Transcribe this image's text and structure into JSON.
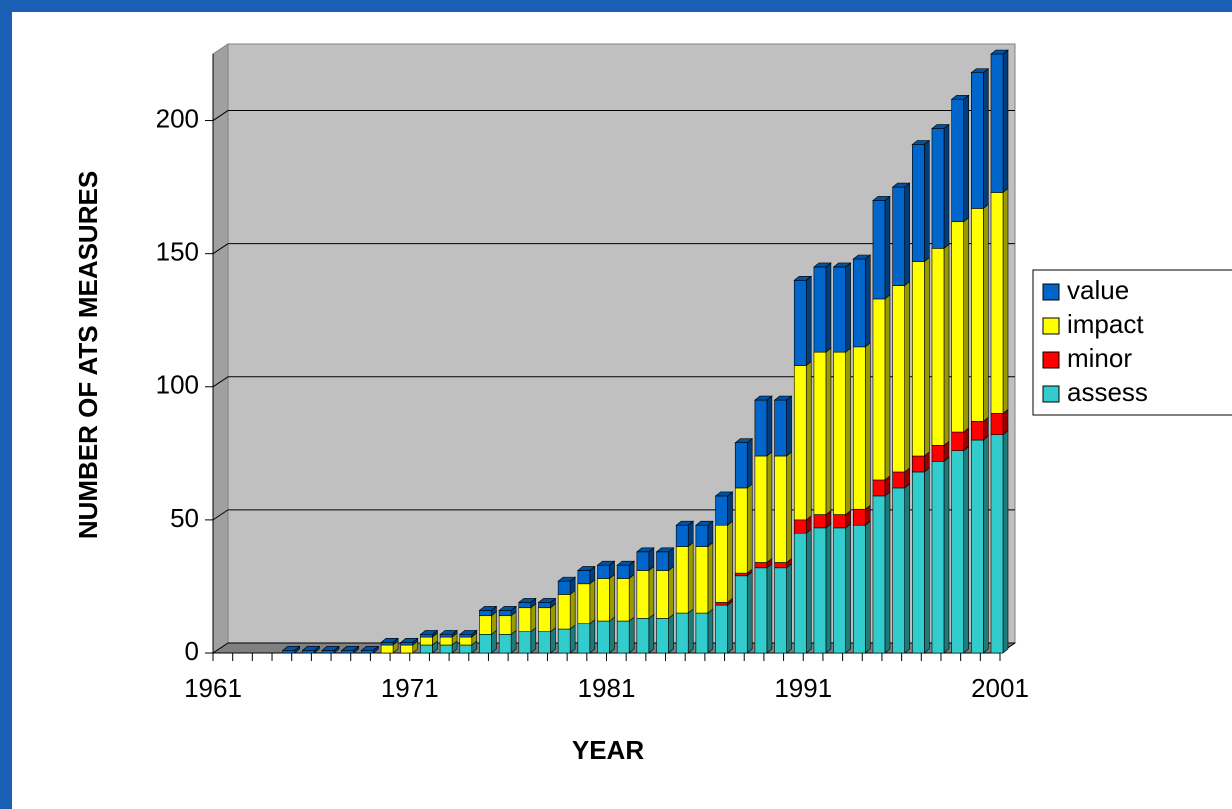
{
  "chart_data": {
    "type": "bar3d_stacked",
    "x_label": "YEAR",
    "y_label": "NUMBER OF ATS MEASURES",
    "categories": [
      "1961",
      null,
      null,
      null,
      null,
      null,
      null,
      null,
      null,
      null,
      "1971",
      null,
      null,
      null,
      null,
      null,
      null,
      null,
      null,
      null,
      "1981",
      null,
      null,
      null,
      null,
      null,
      null,
      null,
      null,
      null,
      "1991",
      null,
      null,
      null,
      null,
      null,
      null,
      null,
      null,
      null,
      "2001"
    ],
    "series": [
      {
        "name": "assess",
        "color": "#33cccc",
        "values": [
          0,
          0,
          0,
          0,
          0,
          0,
          0,
          0,
          0,
          0,
          0,
          3,
          3,
          3,
          7,
          7,
          8,
          8,
          9,
          11,
          12,
          12,
          13,
          13,
          15,
          15,
          18,
          29,
          32,
          32,
          45,
          47,
          47,
          48,
          59,
          62,
          68,
          72,
          76,
          80,
          82
        ]
      },
      {
        "name": "minor",
        "color": "#ff0000",
        "values": [
          0,
          0,
          0,
          0,
          0,
          0,
          0,
          0,
          0,
          0,
          0,
          0,
          0,
          0,
          0,
          0,
          0,
          0,
          0,
          0,
          0,
          0,
          0,
          0,
          0,
          0,
          1,
          1,
          2,
          2,
          5,
          5,
          5,
          6,
          6,
          6,
          6,
          6,
          7,
          7,
          8
        ]
      },
      {
        "name": "impact",
        "color": "#ffff00",
        "values": [
          0,
          0,
          0,
          0,
          0,
          0,
          0,
          0,
          0,
          3,
          3,
          3,
          3,
          3,
          7,
          7,
          9,
          9,
          13,
          15,
          16,
          16,
          18,
          18,
          25,
          25,
          29,
          32,
          40,
          40,
          58,
          61,
          61,
          61,
          68,
          70,
          73,
          74,
          79,
          80,
          83
        ]
      },
      {
        "name": "value",
        "color": "#0066cc",
        "values": [
          0,
          0,
          0,
          0,
          1,
          1,
          1,
          1,
          1,
          1,
          1,
          1,
          1,
          1,
          2,
          2,
          2,
          2,
          5,
          5,
          5,
          5,
          7,
          7,
          8,
          8,
          11,
          17,
          21,
          21,
          32,
          32,
          32,
          33,
          37,
          37,
          44,
          45,
          46,
          51,
          52
        ]
      }
    ],
    "ylim": [
      0,
      225
    ],
    "yticks": [
      0,
      50,
      100,
      150,
      200
    ],
    "grid": true,
    "legend": "right"
  }
}
